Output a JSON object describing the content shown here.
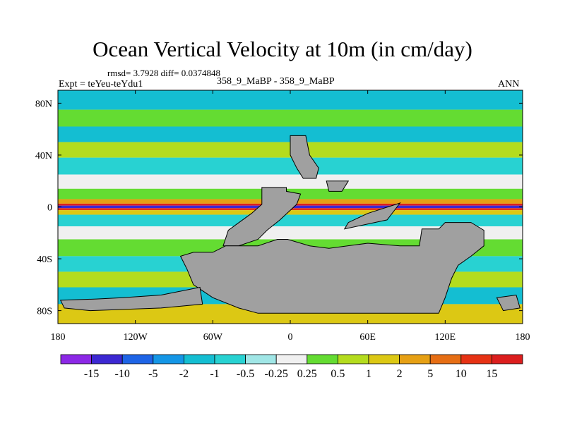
{
  "chart_data": {
    "type": "heatmap",
    "title": "Ocean Vertical Velocity at 10m (in cm/day)",
    "stats_line": "rmsd= 3.7928 diff= 0.0374848",
    "left_label": "Expt = teYeu-teYdu1",
    "center_label": "358_9_MaBP - 358_9_MaBP",
    "right_label": "ANN",
    "x_ticks": [
      "180",
      "120W",
      "60W",
      "0",
      "60E",
      "120E",
      "180"
    ],
    "y_ticks": [
      "80N",
      "40N",
      "0",
      "40S",
      "80S"
    ],
    "xlim": [
      -180,
      180
    ],
    "ylim": [
      -90,
      90
    ],
    "colorbar_labels": [
      "-15",
      "-10",
      "-5",
      "-2",
      "-1",
      "-0.5",
      "-0.25",
      "0.25",
      "0.5",
      "1",
      "2",
      "5",
      "10",
      "15"
    ],
    "colorbar_colors": [
      "#8c28e6",
      "#3c28d2",
      "#1e64e6",
      "#1496e6",
      "#14bed2",
      "#28d2d2",
      "#a0e6e6",
      "#f0f0f0",
      "#64dc32",
      "#b4dc1e",
      "#dcc814",
      "#e6a014",
      "#e66e14",
      "#e63214",
      "#dc1e1e"
    ],
    "missing_color": "#a0a0a0",
    "zonal_bands": [
      {
        "lat_min": 75,
        "lat_max": 90,
        "class": 4
      },
      {
        "lat_min": 62,
        "lat_max": 75,
        "class": 8
      },
      {
        "lat_min": 50,
        "lat_max": 62,
        "class": 4
      },
      {
        "lat_min": 38,
        "lat_max": 50,
        "class": 9
      },
      {
        "lat_min": 25,
        "lat_max": 38,
        "class": 5
      },
      {
        "lat_min": 14,
        "lat_max": 25,
        "class": 7
      },
      {
        "lat_min": 6,
        "lat_max": 14,
        "class": 8
      },
      {
        "lat_min": 2.5,
        "lat_max": 6,
        "class": 11
      },
      {
        "lat_min": 1,
        "lat_max": 2.5,
        "class": 14
      },
      {
        "lat_min": -1,
        "lat_max": 1,
        "class": 1
      },
      {
        "lat_min": -2.5,
        "lat_max": -1,
        "class": 13
      },
      {
        "lat_min": -6,
        "lat_max": -2.5,
        "class": 10
      },
      {
        "lat_min": -15,
        "lat_max": -6,
        "class": 5
      },
      {
        "lat_min": -25,
        "lat_max": -15,
        "class": 7
      },
      {
        "lat_min": -38,
        "lat_max": -25,
        "class": 8
      },
      {
        "lat_min": -50,
        "lat_max": -38,
        "class": 5
      },
      {
        "lat_min": -62,
        "lat_max": -50,
        "class": 9
      },
      {
        "lat_min": -75,
        "lat_max": -62,
        "class": 4
      },
      {
        "lat_min": -90,
        "lat_max": -75,
        "class": 10
      }
    ],
    "land_masks": [
      {
        "name": "northern-continent",
        "points": [
          [
            0,
            55
          ],
          [
            12,
            55
          ],
          [
            15,
            40
          ],
          [
            22,
            30
          ],
          [
            20,
            22
          ],
          [
            10,
            22
          ],
          [
            5,
            30
          ],
          [
            0,
            40
          ]
        ]
      },
      {
        "name": "northern-island",
        "points": [
          [
            28,
            20
          ],
          [
            45,
            20
          ],
          [
            40,
            12
          ],
          [
            30,
            12
          ]
        ]
      },
      {
        "name": "central-continent",
        "points": [
          [
            -22,
            15
          ],
          [
            -3,
            15
          ],
          [
            -3,
            12
          ],
          [
            8,
            10
          ],
          [
            5,
            2
          ],
          [
            -8,
            -10
          ],
          [
            -18,
            -18
          ],
          [
            -25,
            -25
          ],
          [
            -40,
            -30
          ],
          [
            -52,
            -30
          ],
          [
            -48,
            -18
          ],
          [
            -30,
            -5
          ],
          [
            -22,
            2
          ]
        ]
      },
      {
        "name": "eastern-island",
        "points": [
          [
            42,
            -17
          ],
          [
            75,
            -10
          ],
          [
            85,
            3
          ],
          [
            60,
            -5
          ],
          [
            45,
            -12
          ]
        ]
      },
      {
        "name": "pangea-south",
        "points": [
          [
            -50,
            -30
          ],
          [
            -25,
            -30
          ],
          [
            -10,
            -25
          ],
          [
            -2,
            -25
          ],
          [
            15,
            -30
          ],
          [
            30,
            -32
          ],
          [
            60,
            -28
          ],
          [
            85,
            -30
          ],
          [
            100,
            -30
          ],
          [
            102,
            -17
          ],
          [
            115,
            -17
          ],
          [
            120,
            -12
          ],
          [
            140,
            -12
          ],
          [
            150,
            -18
          ],
          [
            150,
            -30
          ],
          [
            140,
            -38
          ],
          [
            130,
            -45
          ],
          [
            125,
            -55
          ],
          [
            120,
            -70
          ],
          [
            115,
            -82
          ],
          [
            70,
            -82
          ],
          [
            30,
            -82
          ],
          [
            5,
            -82
          ],
          [
            -25,
            -82
          ],
          [
            -40,
            -78
          ],
          [
            -60,
            -70
          ],
          [
            -75,
            -60
          ],
          [
            -80,
            -48
          ],
          [
            -85,
            -38
          ],
          [
            -75,
            -35
          ],
          [
            -60,
            -35
          ]
        ]
      },
      {
        "name": "southern-tongue",
        "points": [
          [
            -130,
            -70
          ],
          [
            -100,
            -68
          ],
          [
            -70,
            -62
          ],
          [
            -68,
            -75
          ],
          [
            -100,
            -78
          ],
          [
            -155,
            -80
          ],
          [
            -175,
            -78
          ],
          [
            -178,
            -72
          ],
          [
            -150,
            -71
          ]
        ]
      },
      {
        "name": "eastern-islet",
        "points": [
          [
            160,
            -70
          ],
          [
            175,
            -68
          ],
          [
            178,
            -78
          ],
          [
            165,
            -80
          ]
        ]
      }
    ]
  }
}
